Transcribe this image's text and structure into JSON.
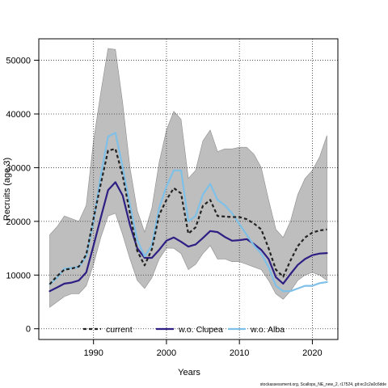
{
  "chart_data": {
    "type": "line",
    "xlabel": "Years",
    "ylabel": "Recruits (age 3)",
    "xlim": [
      1982.5,
      2023.5
    ],
    "ylim": [
      -2000,
      54000
    ],
    "x_ticks": [
      1990,
      2000,
      2010,
      2020
    ],
    "y_ticks": [
      0,
      10000,
      20000,
      30000,
      40000,
      50000
    ],
    "x_tick_labels": [
      "1990",
      "2000",
      "2010",
      "2020"
    ],
    "y_tick_labels": [
      "0",
      "10000",
      "20000",
      "30000",
      "40000",
      "50000"
    ],
    "grid": true,
    "legend_position": "bottom",
    "x": [
      1984,
      1985,
      1986,
      1987,
      1988,
      1989,
      1990,
      1991,
      1992,
      1993,
      1994,
      1995,
      1996,
      1997,
      1998,
      1999,
      2000,
      2001,
      2002,
      2003,
      2004,
      2005,
      2006,
      2007,
      2008,
      2009,
      2010,
      2011,
      2012,
      2013,
      2014,
      2015,
      2016,
      2017,
      2018,
      2019,
      2020,
      2021,
      2022
    ],
    "band": {
      "name": "",
      "color": "#bebebe",
      "upper": [
        17500,
        19000,
        21000,
        20500,
        20000,
        23000,
        35000,
        44000,
        52200,
        52000,
        42000,
        30000,
        22000,
        18000,
        22500,
        31000,
        37000,
        40500,
        39000,
        28000,
        29500,
        35000,
        37000,
        33000,
        33500,
        33500,
        33800,
        33800,
        32500,
        30000,
        24000,
        18500,
        17000,
        20000,
        25000,
        28000,
        29500,
        32000,
        36000
      ],
      "lower": [
        4000,
        5000,
        6000,
        6500,
        6500,
        8000,
        12000,
        17000,
        21000,
        21500,
        17500,
        13000,
        9000,
        7500,
        9500,
        13000,
        15000,
        15000,
        14000,
        11000,
        12000,
        14000,
        15500,
        13000,
        13000,
        12500,
        12500,
        12000,
        11500,
        11000,
        9000,
        6500,
        5500,
        7000,
        9000,
        10000,
        10500,
        10000,
        9000
      ]
    },
    "series": [
      {
        "name": "w.o. Clupea",
        "color": "#2d1f83",
        "dash": "",
        "width": 2.2,
        "values": [
          7000,
          7700,
          8400,
          8600,
          9000,
          10500,
          15500,
          20700,
          25800,
          27300,
          24800,
          19300,
          15000,
          13200,
          13200,
          14700,
          16400,
          17000,
          16200,
          15300,
          15700,
          16900,
          18200,
          18000,
          17100,
          16400,
          16500,
          16700,
          15800,
          14700,
          13000,
          9600,
          8400,
          10200,
          11900,
          13000,
          13700,
          14000,
          14100
        ]
      },
      {
        "name": "w.o. Alba",
        "color": "#7ec0e8",
        "dash": "",
        "width": 2.2,
        "values": [
          8300,
          9500,
          11200,
          11300,
          11500,
          13500,
          20000,
          28500,
          35800,
          36500,
          30000,
          23000,
          16500,
          13500,
          15500,
          22500,
          26500,
          29500,
          29500,
          20000,
          21000,
          25000,
          27000,
          24000,
          23000,
          21500,
          19500,
          17500,
          15500,
          14000,
          11500,
          8000,
          7000,
          7000,
          7500,
          8000,
          8000,
          8500,
          8700
        ]
      },
      {
        "name": "current",
        "color": "#222222",
        "dash": "4,3",
        "width": 2.2,
        "values": [
          8300,
          9800,
          11000,
          11200,
          11600,
          13800,
          20500,
          27000,
          33200,
          33500,
          28500,
          21500,
          14500,
          11800,
          14800,
          21200,
          24000,
          26200,
          25200,
          17700,
          18900,
          22900,
          24000,
          21000,
          20900,
          20800,
          20800,
          20400,
          19600,
          18500,
          15000,
          11000,
          9700,
          12700,
          15400,
          17000,
          17900,
          18300,
          18500
        ]
      }
    ],
    "legend": [
      "current",
      "w.o. Clupea",
      "w.o. Alba"
    ]
  },
  "footer": "stockassessment.org, Scallops_NE_new_2, r17524, git:ec2c2a0c6dde"
}
